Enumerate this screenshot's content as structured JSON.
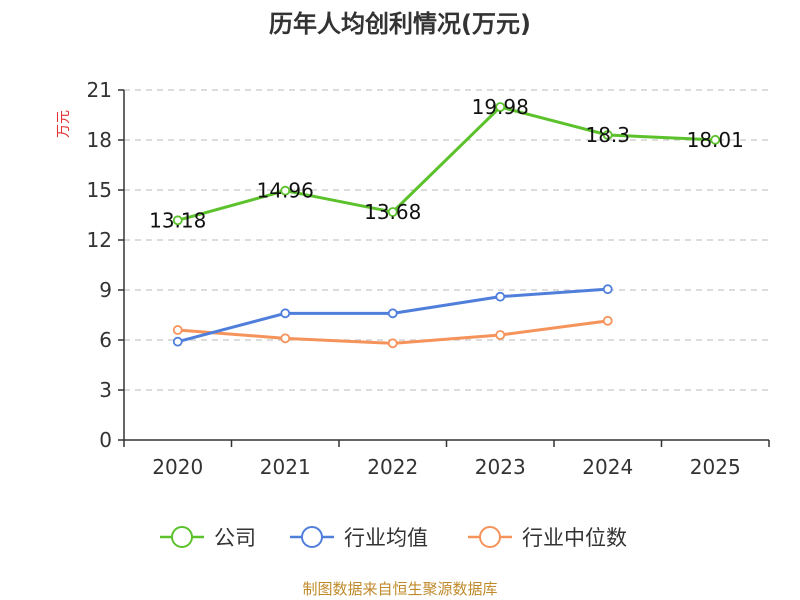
{
  "chart_data": {
    "type": "line",
    "title": "历年人均创利情况(万元)",
    "ylabel": "万元",
    "xlabel": "",
    "categories": [
      "2020",
      "2021",
      "2022",
      "2023",
      "2024",
      "2025"
    ],
    "ylim": [
      0,
      21
    ],
    "yticks": [
      0,
      3,
      6,
      9,
      12,
      15,
      18,
      21
    ],
    "grid": true,
    "legend_position": "bottom",
    "series": [
      {
        "name": "公司",
        "color": "#5cc22c",
        "values": [
          13.18,
          14.96,
          13.68,
          19.98,
          18.3,
          18.01
        ],
        "labels": [
          "13.18",
          "14.96",
          "13.68",
          "19.98",
          "18.3",
          "18.01"
        ]
      },
      {
        "name": "行业均值",
        "color": "#4f7fdb",
        "values": [
          5.9,
          7.6,
          7.6,
          8.6,
          9.05,
          null
        ]
      },
      {
        "name": "行业中位数",
        "color": "#f5935a",
        "values": [
          6.6,
          6.1,
          5.8,
          6.3,
          7.15,
          null
        ]
      }
    ]
  },
  "source_note": "制图数据来自恒生聚源数据库"
}
